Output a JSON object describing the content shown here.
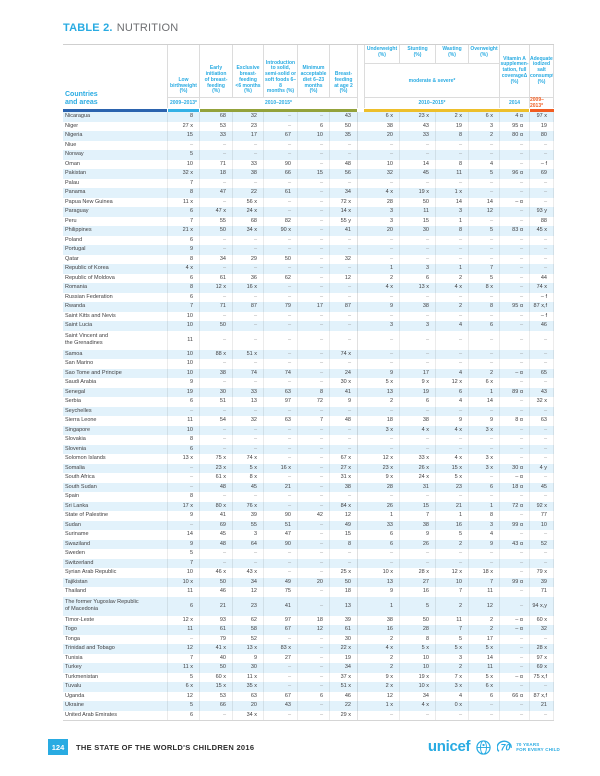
{
  "title": {
    "label": "TABLE 2.",
    "name": "NUTRITION"
  },
  "header": {
    "row_header": "Countries\nand areas",
    "group_label": "moderate & severe*",
    "columns": [
      {
        "label": "Low\nbirthweight\n(%)"
      },
      {
        "label": "Early\ninitiation\nof breast-\nfeeding\n(%)"
      },
      {
        "label": "Exclusive\nbreast-\nfeeding\n<6 months\n(%)"
      },
      {
        "label": "Introduction\nto solid,\nsemi-solid or\nsoft foods 6–8\nmonths (%)"
      },
      {
        "label": "Minimum\nacceptable\ndiet 6–23\nmonths\n(%)"
      },
      {
        "label": "Breast-\nfeeding\nat age 2\n(%)"
      },
      {
        "label": "Underweight\n(%)"
      },
      {
        "label": "Stunting\n(%)"
      },
      {
        "label": "Wasting\n(%)"
      },
      {
        "label": "Overweight\n(%)"
      },
      {
        "label": "Vitamin A\nsupplemen-\ntation, full\ncoverageΔ\n(%)"
      },
      {
        "label": "Adequately\niodized salt\nconsumption\n(%)"
      }
    ],
    "periods": {
      "lbw": "2009–2013*",
      "bf": "2010–2015*",
      "anthro": "2010–2015*",
      "vita": "2014",
      "salt": "2009–2013*"
    }
  },
  "rows": [
    {
      "name": "Nicaragua",
      "values": [
        "8",
        "68",
        "32",
        "–",
        "–",
        "43",
        "6 x",
        "23 x",
        "2 x",
        "6 x",
        "4 α",
        "97 x"
      ]
    },
    {
      "name": "Niger",
      "values": [
        "27 x",
        "53",
        "23",
        "–",
        "6",
        "50",
        "38",
        "43",
        "19",
        "3",
        "95 α",
        "19"
      ]
    },
    {
      "name": "Nigeria",
      "values": [
        "15",
        "33",
        "17",
        "67",
        "10",
        "35",
        "20",
        "33",
        "8",
        "2",
        "80 α",
        "80"
      ]
    },
    {
      "name": "Niue",
      "values": [
        "–",
        "–",
        "–",
        "–",
        "–",
        "–",
        "–",
        "–",
        "–",
        "–",
        "–",
        "–"
      ]
    },
    {
      "name": "Norway",
      "values": [
        "5",
        "–",
        "–",
        "–",
        "–",
        "–",
        "–",
        "–",
        "–",
        "–",
        "–",
        "–"
      ]
    },
    {
      "name": "Oman",
      "values": [
        "10",
        "71",
        "33",
        "90",
        "–",
        "48",
        "10",
        "14",
        "8",
        "4",
        "–",
        "– f"
      ]
    },
    {
      "name": "Pakistan",
      "values": [
        "32 x",
        "18",
        "38",
        "66",
        "15",
        "56",
        "32",
        "45",
        "11",
        "5",
        "96 α",
        "69"
      ]
    },
    {
      "name": "Palau",
      "values": [
        "7",
        "–",
        "–",
        "–",
        "–",
        "–",
        "–",
        "–",
        "–",
        "–",
        "–",
        "–"
      ]
    },
    {
      "name": "Panama",
      "values": [
        "8",
        "47",
        "22",
        "61",
        "–",
        "34",
        "4 x",
        "19 x",
        "1 x",
        "–",
        "–",
        "–"
      ]
    },
    {
      "name": "Papua New Guinea",
      "values": [
        "11 x",
        "–",
        "56 x",
        "–",
        "–",
        "72 x",
        "28",
        "50",
        "14",
        "14",
        "– α",
        "–"
      ]
    },
    {
      "name": "Paraguay",
      "values": [
        "6",
        "47 x",
        "24 x",
        "–",
        "–",
        "14 x",
        "3",
        "11",
        "3",
        "12",
        "–",
        "93 y"
      ]
    },
    {
      "name": "Peru",
      "values": [
        "7",
        "55",
        "68",
        "82",
        "–",
        "55 y",
        "3",
        "15",
        "1",
        "–",
        "–",
        "88"
      ]
    },
    {
      "name": "Philippines",
      "values": [
        "21 x",
        "50",
        "34 x",
        "90 x",
        "–",
        "41",
        "20",
        "30",
        "8",
        "5",
        "83 α",
        "45 x"
      ]
    },
    {
      "name": "Poland",
      "values": [
        "6",
        "–",
        "–",
        "–",
        "–",
        "–",
        "–",
        "–",
        "–",
        "–",
        "–",
        "–"
      ]
    },
    {
      "name": "Portugal",
      "values": [
        "9",
        "–",
        "–",
        "–",
        "–",
        "–",
        "–",
        "–",
        "–",
        "–",
        "–",
        "–"
      ]
    },
    {
      "name": "Qatar",
      "values": [
        "8",
        "34",
        "29",
        "50",
        "–",
        "32",
        "–",
        "–",
        "–",
        "–",
        "–",
        "–"
      ]
    },
    {
      "name": "Republic of Korea",
      "values": [
        "4 x",
        "–",
        "–",
        "–",
        "–",
        "–",
        "1",
        "3",
        "1",
        "7",
        "–",
        "–"
      ]
    },
    {
      "name": "Republic of Moldova",
      "values": [
        "6",
        "61",
        "36",
        "62",
        "–",
        "12",
        "2",
        "6",
        "2",
        "5",
        "–",
        "44"
      ]
    },
    {
      "name": "Romania",
      "values": [
        "8",
        "12 x",
        "16 x",
        "–",
        "–",
        "–",
        "4 x",
        "13 x",
        "4 x",
        "8 x",
        "–",
        "74 x"
      ]
    },
    {
      "name": "Russian Federation",
      "values": [
        "6",
        "–",
        "–",
        "–",
        "–",
        "–",
        "–",
        "–",
        "–",
        "–",
        "–",
        "– f"
      ]
    },
    {
      "name": "Rwanda",
      "values": [
        "7",
        "71",
        "87",
        "79",
        "17",
        "87",
        "9",
        "38",
        "2",
        "8",
        "95 α",
        "87 x,f"
      ]
    },
    {
      "name": "Saint Kitts and Nevis",
      "values": [
        "10",
        "–",
        "–",
        "–",
        "–",
        "–",
        "–",
        "–",
        "–",
        "–",
        "–",
        "– f"
      ]
    },
    {
      "name": "Saint Lucia",
      "values": [
        "10",
        "50",
        "–",
        "–",
        "–",
        "–",
        "3",
        "3",
        "4",
        "6",
        "–",
        "46"
      ]
    },
    {
      "name": "Saint Vincent and\nthe Grenadines",
      "values": [
        "11",
        "–",
        "–",
        "–",
        "–",
        "–",
        "–",
        "–",
        "–",
        "–",
        "–",
        "–"
      ]
    },
    {
      "name": "Samoa",
      "values": [
        "10",
        "88 x",
        "51 x",
        "–",
        "–",
        "74 x",
        "–",
        "–",
        "–",
        "–",
        "–",
        "–"
      ]
    },
    {
      "name": "San Marino",
      "values": [
        "10",
        "–",
        "–",
        "–",
        "–",
        "–",
        "–",
        "–",
        "–",
        "–",
        "–",
        "–"
      ]
    },
    {
      "name": "Sao Tome and Principe",
      "values": [
        "10",
        "38",
        "74",
        "74",
        "–",
        "24",
        "9",
        "17",
        "4",
        "2",
        "– α",
        "65"
      ]
    },
    {
      "name": "Saudi Arabia",
      "values": [
        "9",
        "–",
        "–",
        "–",
        "–",
        "30 x",
        "5 x",
        "9 x",
        "12 x",
        "6 x",
        "–",
        "–"
      ]
    },
    {
      "name": "Senegal",
      "values": [
        "19",
        "30",
        "33",
        "63",
        "8",
        "41",
        "13",
        "19",
        "6",
        "1",
        "89 α",
        "43"
      ]
    },
    {
      "name": "Serbia",
      "values": [
        "6",
        "51",
        "13",
        "97",
        "72",
        "9",
        "2",
        "6",
        "4",
        "14",
        "–",
        "32 x"
      ]
    },
    {
      "name": "Seychelles",
      "values": [
        "–",
        "–",
        "–",
        "–",
        "–",
        "–",
        "–",
        "–",
        "–",
        "–",
        "–",
        "–"
      ]
    },
    {
      "name": "Sierra Leone",
      "values": [
        "11",
        "54",
        "32",
        "63",
        "7",
        "48",
        "18",
        "38",
        "9",
        "9",
        "8 α",
        "63"
      ]
    },
    {
      "name": "Singapore",
      "values": [
        "10",
        "–",
        "–",
        "–",
        "–",
        "–",
        "3 x",
        "4 x",
        "4 x",
        "3 x",
        "–",
        "–"
      ]
    },
    {
      "name": "Slovakia",
      "values": [
        "8",
        "–",
        "–",
        "–",
        "–",
        "–",
        "–",
        "–",
        "–",
        "–",
        "–",
        "–"
      ]
    },
    {
      "name": "Slovenia",
      "values": [
        "6",
        "–",
        "–",
        "–",
        "–",
        "–",
        "–",
        "–",
        "–",
        "–",
        "–",
        "–"
      ]
    },
    {
      "name": "Solomon Islands",
      "values": [
        "13 x",
        "75 x",
        "74 x",
        "–",
        "–",
        "67 x",
        "12 x",
        "33 x",
        "4 x",
        "3 x",
        "–",
        "–"
      ]
    },
    {
      "name": "Somalia",
      "values": [
        "–",
        "23 x",
        "5 x",
        "16 x",
        "–",
        "27 x",
        "23 x",
        "26 x",
        "15 x",
        "3 x",
        "30 α",
        "4 y"
      ]
    },
    {
      "name": "South Africa",
      "values": [
        "–",
        "61 x",
        "8 x",
        "–",
        "–",
        "31 x",
        "9 x",
        "24 x",
        "5 x",
        "–",
        "– α",
        "–"
      ]
    },
    {
      "name": "South Sudan",
      "values": [
        "–",
        "48",
        "45",
        "21",
        "–",
        "38",
        "28",
        "31",
        "23",
        "6",
        "18 α",
        "45"
      ]
    },
    {
      "name": "Spain",
      "values": [
        "8",
        "–",
        "–",
        "–",
        "–",
        "–",
        "–",
        "–",
        "–",
        "–",
        "–",
        "–"
      ]
    },
    {
      "name": "Sri Lanka",
      "values": [
        "17 x",
        "80 x",
        "76 x",
        "–",
        "–",
        "84 x",
        "26",
        "15",
        "21",
        "1",
        "72 α",
        "92 x"
      ]
    },
    {
      "name": "State of Palestine",
      "values": [
        "9",
        "41",
        "39",
        "90",
        "42",
        "12",
        "1",
        "7",
        "1",
        "8",
        "–",
        "77"
      ]
    },
    {
      "name": "Sudan",
      "values": [
        "–",
        "69",
        "55",
        "51",
        "–",
        "49",
        "33",
        "38",
        "16",
        "3",
        "99 α",
        "10"
      ]
    },
    {
      "name": "Suriname",
      "values": [
        "14",
        "45",
        "3",
        "47",
        "–",
        "15",
        "6",
        "9",
        "5",
        "4",
        "–",
        "–"
      ]
    },
    {
      "name": "Swaziland",
      "values": [
        "9",
        "48",
        "64",
        "90",
        "–",
        "8",
        "6",
        "26",
        "2",
        "9",
        "43 α",
        "52"
      ]
    },
    {
      "name": "Sweden",
      "values": [
        "5",
        "–",
        "–",
        "–",
        "–",
        "–",
        "–",
        "–",
        "–",
        "–",
        "–",
        "–"
      ]
    },
    {
      "name": "Switzerland",
      "values": [
        "7",
        "–",
        "–",
        "–",
        "–",
        "–",
        "–",
        "–",
        "–",
        "–",
        "–",
        "–"
      ]
    },
    {
      "name": "Syrian Arab Republic",
      "values": [
        "10",
        "46 x",
        "43 x",
        "–",
        "–",
        "25 x",
        "10 x",
        "28 x",
        "12 x",
        "18 x",
        "–",
        "79 x"
      ]
    },
    {
      "name": "Tajikistan",
      "values": [
        "10 x",
        "50",
        "34",
        "49",
        "20",
        "50",
        "13",
        "27",
        "10",
        "7",
        "99 α",
        "39"
      ]
    },
    {
      "name": "Thailand",
      "values": [
        "11",
        "46",
        "12",
        "75",
        "–",
        "18",
        "9",
        "16",
        "7",
        "11",
        "–",
        "71"
      ]
    },
    {
      "name": "The former Yugoslav Republic\nof Macedonia",
      "values": [
        "6",
        "21",
        "23",
        "41",
        "–",
        "13",
        "1",
        "5",
        "2",
        "12",
        "–",
        "94 x,y"
      ]
    },
    {
      "name": "Timor-Leste",
      "values": [
        "12 x",
        "93",
        "62",
        "97",
        "18",
        "39",
        "38",
        "50",
        "11",
        "2",
        "– α",
        "60 x"
      ]
    },
    {
      "name": "Togo",
      "values": [
        "11",
        "61",
        "58",
        "67",
        "12",
        "61",
        "16",
        "28",
        "7",
        "2",
        "– α",
        "32"
      ]
    },
    {
      "name": "Tonga",
      "values": [
        "–",
        "79",
        "52",
        "–",
        "–",
        "30",
        "2",
        "8",
        "5",
        "17",
        "–",
        "–"
      ]
    },
    {
      "name": "Trinidad and Tobago",
      "values": [
        "12",
        "41 x",
        "13 x",
        "83 x",
        "–",
        "22 x",
        "4 x",
        "5 x",
        "5 x",
        "5 x",
        "–",
        "28 x"
      ]
    },
    {
      "name": "Tunisia",
      "values": [
        "7",
        "40",
        "9",
        "27",
        "–",
        "19",
        "2",
        "10",
        "3",
        "14",
        "–",
        "97 x"
      ]
    },
    {
      "name": "Turkey",
      "values": [
        "11 x",
        "50",
        "30",
        "–",
        "–",
        "34",
        "2",
        "10",
        "2",
        "11",
        "–",
        "69 x"
      ]
    },
    {
      "name": "Turkmenistan",
      "values": [
        "5",
        "60 x",
        "11 x",
        "–",
        "–",
        "37 x",
        "9 x",
        "19 x",
        "7 x",
        "5 x",
        "– α",
        "75 x,f"
      ]
    },
    {
      "name": "Tuvalu",
      "values": [
        "6 x",
        "15 x",
        "35 x",
        "–",
        "–",
        "51 x",
        "2 x",
        "10 x",
        "3 x",
        "6 x",
        "–",
        "–"
      ]
    },
    {
      "name": "Uganda",
      "values": [
        "12",
        "53",
        "63",
        "67",
        "6",
        "46",
        "12",
        "34",
        "4",
        "6",
        "66 α",
        "87 x,f"
      ]
    },
    {
      "name": "Ukraine",
      "values": [
        "5",
        "66",
        "20",
        "43",
        "–",
        "22",
        "1 x",
        "4 x",
        "0 x",
        "–",
        "–",
        "21"
      ]
    },
    {
      "name": "United Arab Emirates",
      "values": [
        "6",
        "–",
        "34 x",
        "–",
        "–",
        "29 x",
        "–",
        "–",
        "–",
        "–",
        "–",
        "–"
      ]
    }
  ],
  "footer": {
    "page_number": "124",
    "report_title": "THE STATE OF THE WORLD'S CHILDREN 2016",
    "logo_word": "unicef",
    "anniversary_line1": "70 YEARS",
    "anniversary_line2": "FOR EVERY CHILD"
  },
  "colors": {
    "unicef_cyan": "#29ABE2",
    "bar_blue": "#2B63AE",
    "bar_cyan": "#33B1E6",
    "bar_olive": "#93A23B",
    "bar_yellow": "#EDBF2B",
    "bar_orange": "#F15D22",
    "row_shade": "#E2F2FB"
  }
}
